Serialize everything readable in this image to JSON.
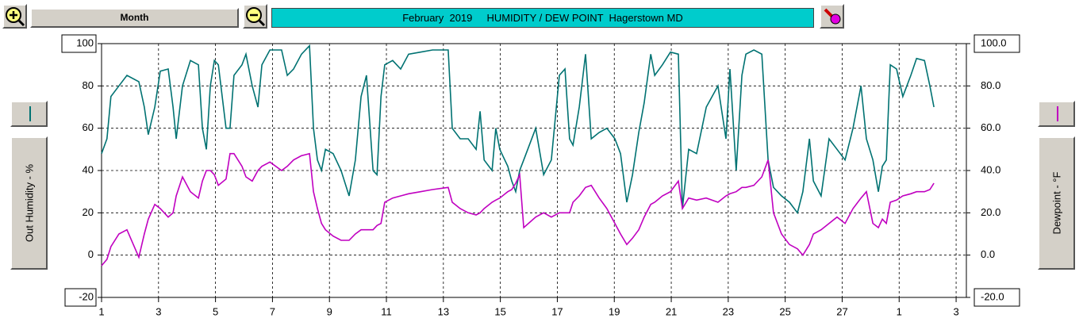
{
  "toolbar": {
    "period": "Month"
  },
  "chart_data": {
    "type": "line",
    "title": "February  2019     HUMIDITY / DEW POINT  Hagerstown MD",
    "y_label": "Out Humidity - %",
    "y2_label": "Dewpoint - °F",
    "x": [
      1,
      1.19,
      1.33,
      1.61,
      1.89,
      2.31,
      2.5,
      2.64,
      2.87,
      3.06,
      3.34,
      3.51,
      3.62,
      3.84,
      4.12,
      4.4,
      4.54,
      4.68,
      4.82,
      4.96,
      5.1,
      5.37,
      5.51,
      5.65,
      5.93,
      6.07,
      6.29,
      6.49,
      6.63,
      6.91,
      7.32,
      7.52,
      7.74,
      8.02,
      8.3,
      8.44,
      8.58,
      8.72,
      8.86,
      9.13,
      9.41,
      9.69,
      9.91,
      10.11,
      10.3,
      10.53,
      10.67,
      10.81,
      10.94,
      11.22,
      11.5,
      11.78,
      12.2,
      12.62,
      13.17,
      13.31,
      13.59,
      13.87,
      14.15,
      14.29,
      14.43,
      14.71,
      14.84,
      14.98,
      15.26,
      15.4,
      15.54,
      15.68,
      15.82,
      16.24,
      16.52,
      16.79,
      17.07,
      17.27,
      17.43,
      17.55,
      17.77,
      17.99,
      18.19,
      18.47,
      18.74,
      19.02,
      19.22,
      19.44,
      19.64,
      19.86,
      20.05,
      20.28,
      20.42,
      20.69,
      20.97,
      21.25,
      21.39,
      21.61,
      21.89,
      22.23,
      22.64,
      22.92,
      23.06,
      23.28,
      23.48,
      23.62,
      23.9,
      24.18,
      24.4,
      24.59,
      24.87,
      25.15,
      25.43,
      25.62,
      25.85,
      25.99,
      26.26,
      26.54,
      26.82,
      27.1,
      27.38,
      27.66,
      27.85,
      28.08,
      28.27,
      28.41,
      28.55,
      28.69,
      28.91,
      29.13,
      29.41,
      29.61,
      29.89,
      30.08,
      30.22
    ],
    "xlim": [
      1,
      31.36
    ],
    "xticks": [
      1,
      3,
      5,
      7,
      9,
      11,
      13,
      15,
      17,
      19,
      21,
      23,
      25,
      27,
      {
        "value": 29,
        "label": "1"
      },
      {
        "value": 31,
        "label": "3"
      }
    ],
    "ylim": [
      -20,
      100
    ],
    "yticks": [
      -20,
      0,
      20,
      40,
      60,
      80,
      100
    ],
    "y2lim": [
      -20,
      100
    ],
    "y2ticks": [
      {
        "value": -20,
        "label": "-20.0"
      },
      {
        "value": 0,
        "label": "0.0"
      },
      {
        "value": 20,
        "label": "20.0"
      },
      {
        "value": 40,
        "label": "40.0"
      },
      {
        "value": 60,
        "label": "60.0"
      },
      {
        "value": 80,
        "label": "80.0"
      },
      {
        "value": 100,
        "label": "100.0"
      }
    ],
    "grid": true,
    "series": [
      {
        "color": "#007272",
        "values": [
          48,
          55,
          75,
          80,
          85,
          82,
          70,
          57,
          70,
          87,
          88,
          70,
          55,
          80,
          92,
          90,
          60,
          50,
          80,
          92,
          90,
          60,
          60,
          85,
          90,
          95,
          80,
          70,
          90,
          97,
          97,
          85,
          88,
          95,
          99,
          60,
          45,
          40,
          50,
          48,
          40,
          28,
          45,
          75,
          85,
          40,
          38,
          75,
          90,
          92,
          88,
          95,
          96,
          97,
          97,
          60,
          55,
          55,
          50,
          68,
          45,
          40,
          60,
          50,
          42,
          35,
          30,
          40,
          45,
          60,
          38,
          45,
          85,
          88,
          55,
          52,
          70,
          95,
          55,
          58,
          60,
          55,
          48,
          25,
          38,
          58,
          72,
          95,
          85,
          90,
          96,
          95,
          22,
          50,
          48,
          70,
          80,
          55,
          88,
          40,
          85,
          95,
          97,
          95,
          45,
          32,
          28,
          25,
          20,
          30,
          55,
          35,
          28,
          55,
          50,
          45,
          60,
          80,
          55,
          45,
          30,
          42,
          45,
          90,
          88,
          75,
          85,
          93,
          92,
          80,
          70
        ]
      },
      {
        "color": "#c000c0",
        "axis": "y2",
        "values": [
          -5,
          -2,
          4,
          10,
          12,
          -1,
          10,
          17,
          24,
          22,
          18,
          20,
          28,
          37,
          30,
          27,
          35,
          40,
          40,
          38,
          33,
          36,
          48,
          48,
          42,
          37,
          35,
          40,
          42,
          44,
          40,
          42,
          45,
          47,
          48,
          30,
          22,
          15,
          12,
          9,
          7,
          7,
          10,
          12,
          12,
          12,
          14,
          15,
          25,
          27,
          28,
          29,
          30,
          31,
          32,
          25,
          22,
          20,
          19,
          20,
          22,
          25,
          26,
          27,
          30,
          31,
          34,
          38,
          13,
          18,
          20,
          18,
          20,
          20,
          20,
          25,
          28,
          32,
          33,
          27,
          22,
          15,
          10,
          5,
          8,
          12,
          18,
          24,
          25,
          28,
          30,
          35,
          22,
          27,
          26,
          27,
          25,
          28,
          29,
          30,
          32,
          32,
          33,
          37,
          45,
          20,
          10,
          5,
          3,
          0,
          5,
          10,
          12,
          15,
          18,
          15,
          22,
          27,
          30,
          15,
          13,
          17,
          15,
          25,
          26,
          28,
          29,
          30,
          30,
          31,
          34
        ]
      }
    ]
  }
}
